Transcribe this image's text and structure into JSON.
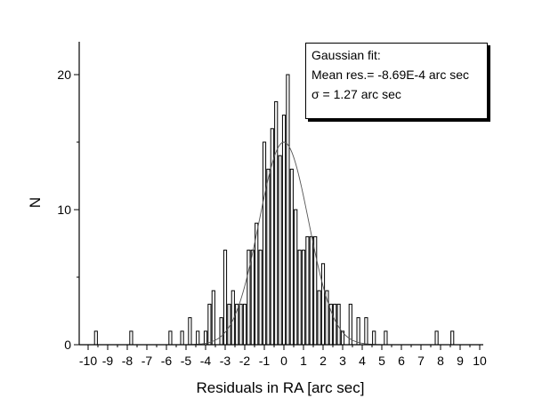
{
  "chart_data": {
    "type": "bar",
    "xlabel": "Residuals in RA [arc sec]",
    "ylabel": "N",
    "xlim": [
      -10.5,
      10.5
    ],
    "ylim": [
      0,
      22
    ],
    "bin_width": 0.2,
    "x_ticks": [
      "-10",
      "-9",
      "-8",
      "-7",
      "-6",
      "-5",
      "-4",
      "-3",
      "-2",
      "-1",
      "0",
      "1",
      "2",
      "3",
      "4",
      "5",
      "6",
      "7",
      "8",
      "9",
      "10"
    ],
    "y_ticks": [
      "0",
      "10",
      "20"
    ],
    "bins": [
      {
        "x": -9.6,
        "y": 1
      },
      {
        "x": -7.8,
        "y": 1
      },
      {
        "x": -5.8,
        "y": 1
      },
      {
        "x": -5.2,
        "y": 1
      },
      {
        "x": -4.8,
        "y": 2
      },
      {
        "x": -4.4,
        "y": 1
      },
      {
        "x": -4.0,
        "y": 1
      },
      {
        "x": -3.8,
        "y": 3
      },
      {
        "x": -3.6,
        "y": 4
      },
      {
        "x": -3.2,
        "y": 2
      },
      {
        "x": -3.0,
        "y": 7
      },
      {
        "x": -2.8,
        "y": 3
      },
      {
        "x": -2.6,
        "y": 4
      },
      {
        "x": -2.4,
        "y": 3
      },
      {
        "x": -2.2,
        "y": 3
      },
      {
        "x": -2.0,
        "y": 3
      },
      {
        "x": -1.8,
        "y": 7
      },
      {
        "x": -1.6,
        "y": 7
      },
      {
        "x": -1.4,
        "y": 9
      },
      {
        "x": -1.2,
        "y": 7
      },
      {
        "x": -1.0,
        "y": 15
      },
      {
        "x": -0.8,
        "y": 13
      },
      {
        "x": -0.6,
        "y": 16
      },
      {
        "x": -0.4,
        "y": 18
      },
      {
        "x": -0.2,
        "y": 14
      },
      {
        "x": 0.0,
        "y": 17
      },
      {
        "x": 0.2,
        "y": 20
      },
      {
        "x": 0.4,
        "y": 13
      },
      {
        "x": 0.6,
        "y": 10
      },
      {
        "x": 0.8,
        "y": 7
      },
      {
        "x": 1.0,
        "y": 7
      },
      {
        "x": 1.2,
        "y": 8
      },
      {
        "x": 1.4,
        "y": 8
      },
      {
        "x": 1.6,
        "y": 8
      },
      {
        "x": 1.8,
        "y": 4
      },
      {
        "x": 2.0,
        "y": 6
      },
      {
        "x": 2.2,
        "y": 4
      },
      {
        "x": 2.4,
        "y": 3
      },
      {
        "x": 2.6,
        "y": 3
      },
      {
        "x": 2.8,
        "y": 3
      },
      {
        "x": 3.0,
        "y": 1
      },
      {
        "x": 3.4,
        "y": 3
      },
      {
        "x": 3.8,
        "y": 2
      },
      {
        "x": 4.2,
        "y": 2
      },
      {
        "x": 4.6,
        "y": 1
      },
      {
        "x": 5.2,
        "y": 1
      },
      {
        "x": 7.8,
        "y": 1
      },
      {
        "x": 8.6,
        "y": 1
      }
    ],
    "fit_curve": {
      "type": "gaussian",
      "mean": -0.000869,
      "sigma": 1.27,
      "amplitude": 15
    },
    "legend_position": "top-right"
  },
  "legend": {
    "line1": "Gaussian fit:",
    "line2": "Mean res.= -8.69E-4 arc sec",
    "line3": "σ = 1.27 arc sec"
  }
}
